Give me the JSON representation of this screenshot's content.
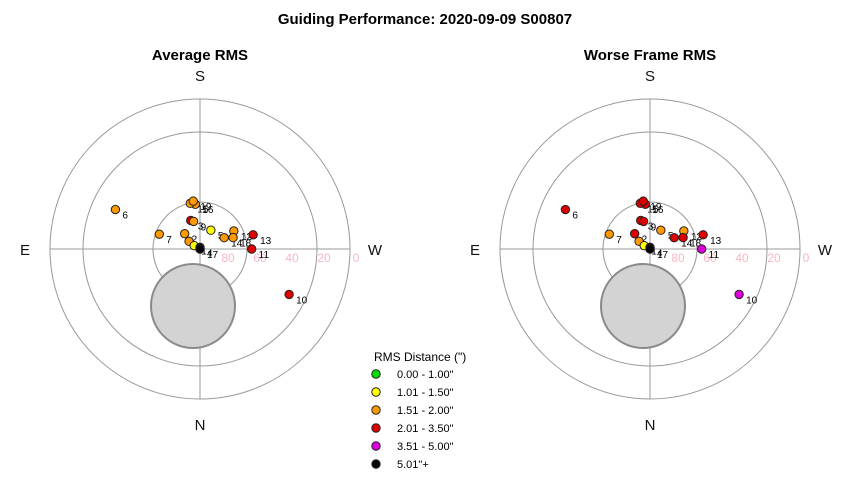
{
  "title": "Guiding Performance: 2020-09-09 S00807",
  "chart_data": [
    {
      "type": "scatter",
      "projection": "polar",
      "title": "Average RMS",
      "cardinals": {
        "top": "S",
        "bottom": "N",
        "left": "E",
        "right": "W"
      },
      "elevation_ticks": [
        "80",
        "60",
        "40",
        "20",
        "0"
      ],
      "points": [
        {
          "label": "6",
          "az": 295,
          "el": 34,
          "color": "#ff9900"
        },
        {
          "label": "16",
          "az": 354,
          "el": 63,
          "color": "#ff9900"
        },
        {
          "label": "15",
          "az": 348,
          "el": 62,
          "color": "#ff9900"
        },
        {
          "label": "19",
          "az": 352,
          "el": 61,
          "color": "#ff9900"
        },
        {
          "label": "3",
          "az": 342,
          "el": 72,
          "color": "#dd0000"
        },
        {
          "label": "9",
          "az": 347,
          "el": 73,
          "color": "#ff9900"
        },
        {
          "label": "7",
          "az": 290,
          "el": 64,
          "color": "#ff9900"
        },
        {
          "label": "2",
          "az": 315,
          "el": 77,
          "color": "#ff9900"
        },
        {
          "label": "5",
          "az": 30,
          "el": 77,
          "color": "#ffff00"
        },
        {
          "label": "12",
          "az": 62,
          "el": 67,
          "color": "#ff9900"
        },
        {
          "label": "14",
          "az": 65,
          "el": 74,
          "color": "#ff9900"
        },
        {
          "label": "18",
          "az": 71,
          "el": 69,
          "color": "#ff9900"
        },
        {
          "label": "8",
          "az": 305,
          "el": 82,
          "color": "#ff9900"
        },
        {
          "label": "1",
          "az": 300,
          "el": 86,
          "color": "#ffff00"
        },
        {
          "label": "13",
          "az": 75,
          "el": 57,
          "color": "#dd0000"
        },
        {
          "label": "10",
          "az": 117,
          "el": 30,
          "color": "#dd0000"
        },
        {
          "label": "4",
          "az": 0,
          "el": 89,
          "color": "#000000"
        },
        {
          "label": "11",
          "az": 90,
          "el": 59,
          "color": "#dd0000"
        },
        {
          "label": "17",
          "az": 180,
          "el": 90,
          "color": "#000000"
        }
      ]
    },
    {
      "type": "scatter",
      "projection": "polar",
      "title": "Worse Frame RMS",
      "cardinals": {
        "top": "S",
        "bottom": "N",
        "left": "E",
        "right": "W"
      },
      "elevation_ticks": [
        "80",
        "60",
        "40",
        "20",
        "0"
      ],
      "points": [
        {
          "label": "6",
          "az": 295,
          "el": 34,
          "color": "#dd0000"
        },
        {
          "label": "16",
          "az": 354,
          "el": 63,
          "color": "#dd0000"
        },
        {
          "label": "15",
          "az": 348,
          "el": 62,
          "color": "#dd0000"
        },
        {
          "label": "19",
          "az": 352,
          "el": 61,
          "color": "#dd0000"
        },
        {
          "label": "3",
          "az": 342,
          "el": 72,
          "color": "#dd0000"
        },
        {
          "label": "9",
          "az": 347,
          "el": 73,
          "color": "#dd0000"
        },
        {
          "label": "7",
          "az": 290,
          "el": 64,
          "color": "#ff9900"
        },
        {
          "label": "2",
          "az": 315,
          "el": 77,
          "color": "#dd0000"
        },
        {
          "label": "5",
          "az": 30,
          "el": 77,
          "color": "#ff9900"
        },
        {
          "label": "12",
          "az": 62,
          "el": 67,
          "color": "#ff9900"
        },
        {
          "label": "14",
          "az": 65,
          "el": 74,
          "color": "#dd0000"
        },
        {
          "label": "18",
          "az": 71,
          "el": 69,
          "color": "#dd0000"
        },
        {
          "label": "8",
          "az": 305,
          "el": 82,
          "color": "#ff9900"
        },
        {
          "label": "1",
          "az": 300,
          "el": 86,
          "color": "#ffff00"
        },
        {
          "label": "13",
          "az": 75,
          "el": 57,
          "color": "#dd0000"
        },
        {
          "label": "10",
          "az": 117,
          "el": 30,
          "color": "#dd00dd"
        },
        {
          "label": "4",
          "az": 0,
          "el": 89,
          "color": "#000000"
        },
        {
          "label": "11",
          "az": 90,
          "el": 59,
          "color": "#dd00dd"
        },
        {
          "label": "17",
          "az": 180,
          "el": 90,
          "color": "#000000"
        }
      ]
    }
  ],
  "legend": {
    "title": "RMS Distance (\")",
    "items": [
      {
        "label": "0.00 - 1.00\"",
        "color": "#00dd00"
      },
      {
        "label": "1.01 - 1.50\"",
        "color": "#ffff00"
      },
      {
        "label": "1.51 - 2.00\"",
        "color": "#ff9900"
      },
      {
        "label": "2.01 - 3.50\"",
        "color": "#dd0000"
      },
      {
        "label": "3.51 - 5.00\"",
        "color": "#dd00dd"
      },
      {
        "label": "5.01\"+",
        "color": "#000000"
      }
    ]
  }
}
